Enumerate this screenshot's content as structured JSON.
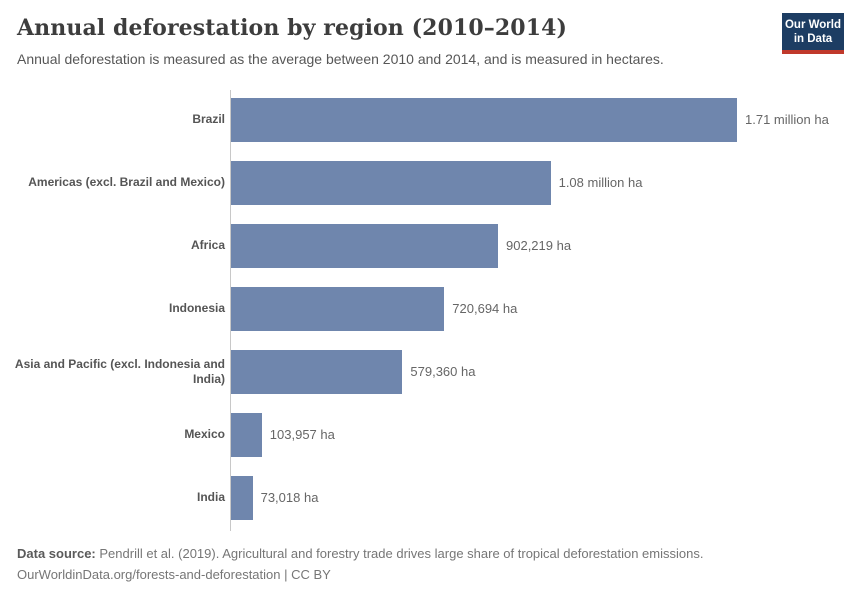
{
  "header": {
    "title": "Annual deforestation by region (2010–2014)",
    "subtitle": "Annual deforestation is measured as the average between 2010 and 2014, and is measured in hectares."
  },
  "logo": {
    "line1": "Our World",
    "line2": "in Data"
  },
  "colors": {
    "bar": "#6f86ad",
    "logo_background": "#1d3d63",
    "logo_underline": "#c0392b",
    "axis": "#c8c8c8"
  },
  "chart_data": {
    "type": "bar",
    "orientation": "horizontal",
    "title": "Annual deforestation by region (2010–2014)",
    "subtitle": "Annual deforestation is measured as the average between 2010 and 2014, and is measured in hectares.",
    "unit": "hectares",
    "grid": false,
    "legend": false,
    "xlim": [
      0,
      1710000
    ],
    "categories": [
      "Brazil",
      "Americas (excl. Brazil and Mexico)",
      "Africa",
      "Indonesia",
      "Asia and Pacific (excl. Indonesia and India)",
      "Mexico",
      "India"
    ],
    "values": [
      1710000,
      1080000,
      902219,
      720694,
      579360,
      103957,
      73018
    ],
    "value_labels": [
      "1.71 million ha",
      "1.08 million ha",
      "902,219 ha",
      "720,694 ha",
      "579,360 ha",
      "103,957 ha",
      "73,018 ha"
    ]
  },
  "footer": {
    "datasource_label": "Data source:",
    "datasource_text": "Pendrill et al. (2019). Agricultural and forestry trade drives large share of tropical deforestation emissions.",
    "license_line": "OurWorldinData.org/forests-and-deforestation | CC BY"
  }
}
